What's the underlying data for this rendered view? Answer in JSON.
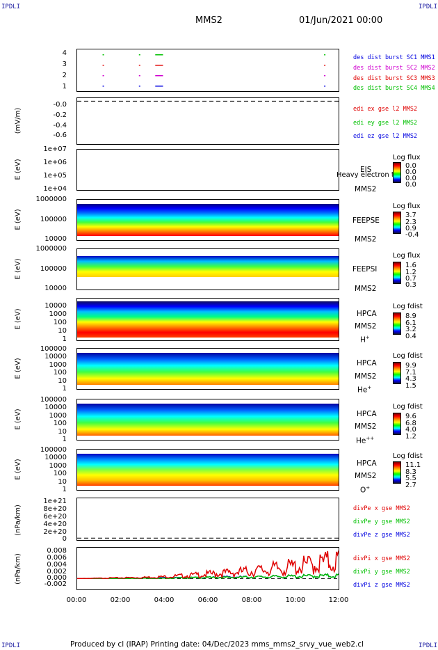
{
  "corners": {
    "tl": "IPDLI",
    "tr": "IPDLI",
    "bl": "IPDLI",
    "br": "IPDLI"
  },
  "header": {
    "spacecraft": "MMS2",
    "datetime": "01/Jun/2021 00:00"
  },
  "footer": {
    "text": "Produced by cl (IRAP)    Printing date: 04/Dec/2023    mms_mms2_srvy_vue_web2.cl"
  },
  "colors": {
    "red": "#e00000",
    "green": "#00c000",
    "blue": "#0000e0",
    "magenta": "#d000d0"
  },
  "xaxis": {
    "ticks": [
      "00:00",
      "02:00",
      "04:00",
      "06:00",
      "08:00",
      "10:00",
      "12:00"
    ]
  },
  "panels": {
    "burst": {
      "yticks": [
        "4",
        "3",
        "2",
        "1"
      ],
      "legend": [
        {
          "text": "des dist burst SC1 MMS1",
          "color": "#0000e0"
        },
        {
          "text": "des dist burst SC2 MMS2",
          "color": "#d000d0"
        },
        {
          "text": "des dist burst SC3 MMS3",
          "color": "#e00000"
        },
        {
          "text": "des dist burst SC4 MMS4",
          "color": "#00c000"
        }
      ]
    },
    "edi": {
      "ylabel": "(mV/m)",
      "yticks": [
        "-0.0",
        "-0.2",
        "-0.4",
        "-0.6"
      ],
      "legend": [
        {
          "text": "edi ex gse l2 MMS2",
          "color": "#e00000"
        },
        {
          "text": "edi ey gse l2 MMS2",
          "color": "#00c000"
        },
        {
          "text": "edi ez gse l2 MMS2",
          "color": "#0000e0"
        }
      ]
    },
    "eis": {
      "ylabel": "E (eV)",
      "yticks": [
        "1e+07",
        "1e+06",
        "1e+05",
        "1e+04"
      ],
      "label1": "EIS",
      "label2": "MMS2",
      "overlay": "Heavy electron to",
      "cb_title": "Log flux",
      "cb_ticks": [
        "0.0",
        "0.0",
        "0.0",
        "0.0"
      ]
    },
    "feepse": {
      "ylabel": "E (eV)",
      "yticks": [
        "1000000",
        "100000",
        "10000"
      ],
      "label1": "FEEPSE",
      "label2": "MMS2",
      "cb_title": "Log flux",
      "cb_ticks": [
        "3.7",
        "2.3",
        "0.9",
        "-0.4"
      ]
    },
    "feepsi": {
      "ylabel": "E (eV)",
      "yticks": [
        "1000000",
        "100000",
        "10000"
      ],
      "label1": "FEEPSI",
      "label2": "MMS2",
      "cb_title": "Log flux",
      "cb_ticks": [
        "1.6",
        "1.2",
        "0.7",
        "0.3"
      ]
    },
    "hpca_h": {
      "ylabel": "E (eV)",
      "yticks": [
        "10000",
        "1000",
        "100",
        "10",
        "1"
      ],
      "label1": "HPCA",
      "label2": "MMS2",
      "species": "H",
      "charge": "+",
      "cb_title": "Log fdist",
      "cb_ticks": [
        "8.9",
        "6.1",
        "3.2",
        "0.4"
      ]
    },
    "hpca_he": {
      "ylabel": "E (eV)",
      "yticks": [
        "100000",
        "10000",
        "1000",
        "100",
        "10",
        "1"
      ],
      "label1": "HPCA",
      "label2": "MMS2",
      "species": "He",
      "charge": "+",
      "cb_title": "Log fdist",
      "cb_ticks": [
        "9.9",
        "7.1",
        "4.3",
        "1.5"
      ]
    },
    "hpca_hepp": {
      "ylabel": "E (eV)",
      "yticks": [
        "100000",
        "10000",
        "1000",
        "100",
        "10",
        "1"
      ],
      "label1": "HPCA",
      "label2": "MMS2",
      "species": "He",
      "charge": "++",
      "cb_title": "Log fdist",
      "cb_ticks": [
        "9.6",
        "6.8",
        "4.0",
        "1.2"
      ]
    },
    "hpca_o": {
      "ylabel": "E (eV)",
      "yticks": [
        "100000",
        "10000",
        "1000",
        "100",
        "10",
        "1"
      ],
      "label1": "HPCA",
      "label2": "MMS2",
      "species": "O",
      "charge": "+",
      "cb_title": "Log fdist",
      "cb_ticks": [
        "11.1",
        "8.3",
        "5.5",
        "2.7"
      ]
    },
    "divpe": {
      "ylabel": "(nPa/km)",
      "yticks": [
        "1e+21",
        "8e+20",
        "6e+20",
        "4e+20",
        "2e+20",
        "0"
      ],
      "legend": [
        {
          "text": "divPe x gse MMS2",
          "color": "#e00000"
        },
        {
          "text": "divPe y gse MMS2",
          "color": "#00c000"
        },
        {
          "text": "divPe z gse MMS2",
          "color": "#0000e0"
        }
      ]
    },
    "divpi": {
      "ylabel": "(nPa/km)",
      "yticks": [
        "0.008",
        "0.006",
        "0.004",
        "0.002",
        "0.000",
        "-0.002"
      ],
      "legend": [
        {
          "text": "divPi x gse MMS2",
          "color": "#e00000"
        },
        {
          "text": "divPi y gse MMS2",
          "color": "#00c000"
        },
        {
          "text": "divPi z gse MMS2",
          "color": "#0000e0"
        }
      ]
    }
  },
  "chart_data": [
    {
      "type": "scatter",
      "panel": "burst",
      "xlabel": "",
      "ylabel": "",
      "xlim": [
        "00:00",
        "12:00"
      ],
      "ylim": [
        0.5,
        4.5
      ],
      "series": [
        {
          "name": "des dist burst SC1 MMS1",
          "color": "#0000e0",
          "y": 1,
          "x": [
            "01:10",
            "02:50",
            "03:35",
            "03:45",
            "11:20"
          ]
        },
        {
          "name": "des dist burst SC2 MMS2",
          "color": "#d000d0",
          "y": 2,
          "x": [
            "01:10",
            "02:50",
            "03:35",
            "03:45",
            "11:20"
          ]
        },
        {
          "name": "des dist burst SC3 MMS3",
          "color": "#e00000",
          "y": 3,
          "x": [
            "01:10",
            "02:50",
            "03:35",
            "03:45",
            "11:20"
          ]
        },
        {
          "name": "des dist burst SC4 MMS4",
          "color": "#00c000",
          "y": 4,
          "x": [
            "01:10",
            "02:50",
            "03:35",
            "03:45",
            "11:20"
          ]
        }
      ]
    },
    {
      "type": "line",
      "panel": "edi",
      "ylabel": "(mV/m)",
      "ylim": [
        -0.7,
        0.05
      ],
      "series": [
        {
          "name": "reference",
          "values": [
            0.0
          ]
        }
      ]
    },
    {
      "type": "heatmap",
      "panel": "eis",
      "ylabel": "E (eV)",
      "yscale": "log",
      "ylim": [
        10000,
        10000000
      ],
      "colorbar": "Log flux"
    },
    {
      "type": "heatmap",
      "panel": "feepse",
      "ylabel": "E (eV)",
      "yscale": "log",
      "ylim": [
        10000,
        1000000
      ],
      "colorbar": "Log flux",
      "crange": [
        -0.4,
        3.7
      ]
    },
    {
      "type": "heatmap",
      "panel": "feepsi",
      "ylabel": "E (eV)",
      "yscale": "log",
      "ylim": [
        10000,
        1000000
      ],
      "colorbar": "Log flux",
      "crange": [
        0.3,
        1.6
      ]
    },
    {
      "type": "heatmap",
      "panel": "hpca_h",
      "ylabel": "E (eV)",
      "yscale": "log",
      "ylim": [
        1,
        30000
      ],
      "colorbar": "Log fdist",
      "crange": [
        0.4,
        8.9
      ]
    },
    {
      "type": "heatmap",
      "panel": "hpca_he",
      "ylabel": "E (eV)",
      "yscale": "log",
      "ylim": [
        1,
        100000
      ],
      "colorbar": "Log fdist",
      "crange": [
        1.5,
        9.9
      ]
    },
    {
      "type": "heatmap",
      "panel": "hpca_hepp",
      "ylabel": "E (eV)",
      "yscale": "log",
      "ylim": [
        1,
        100000
      ],
      "colorbar": "Log fdist",
      "crange": [
        1.2,
        9.6
      ]
    },
    {
      "type": "heatmap",
      "panel": "hpca_o",
      "ylabel": "E (eV)",
      "yscale": "log",
      "ylim": [
        1,
        100000
      ],
      "colorbar": "Log fdist",
      "crange": [
        2.7,
        11.1
      ]
    },
    {
      "type": "line",
      "panel": "divpe",
      "ylabel": "(nPa/km)",
      "ylim": [
        -5e+19,
        1.05e+21
      ],
      "series": [
        {
          "name": "reference",
          "values": [
            0
          ]
        }
      ]
    },
    {
      "type": "line",
      "panel": "divpi",
      "ylabel": "(nPa/km)",
      "ylim": [
        -0.003,
        0.0085
      ],
      "x": [
        "00:00",
        "01:00",
        "02:00",
        "03:00",
        "04:00",
        "05:00",
        "06:00",
        "07:00",
        "08:00",
        "09:00",
        "10:00",
        "11:00",
        "12:00"
      ],
      "series": [
        {
          "name": "divPi x gse MMS2",
          "color": "#e00000",
          "values": [
            0.0,
            0.0001,
            0.0002,
            0.0003,
            0.0005,
            0.0008,
            0.0012,
            0.0016,
            0.002,
            0.0026,
            0.0032,
            0.004,
            0.005
          ]
        },
        {
          "name": "divPi y gse MMS2",
          "color": "#00c000",
          "values": [
            0.0,
            0.0,
            0.0,
            0.0001,
            0.0001,
            0.0002,
            0.0003,
            0.0003,
            0.0004,
            0.0005,
            0.0006,
            0.0007,
            0.0008
          ]
        },
        {
          "name": "divPi z gse MMS2",
          "color": "#0000e0",
          "values": [
            0.0,
            0.0,
            0.0001,
            0.0001,
            0.0002,
            0.0002,
            0.0003,
            0.0004,
            0.0004,
            0.0005,
            0.0006,
            0.0007,
            0.0008
          ]
        }
      ]
    }
  ]
}
